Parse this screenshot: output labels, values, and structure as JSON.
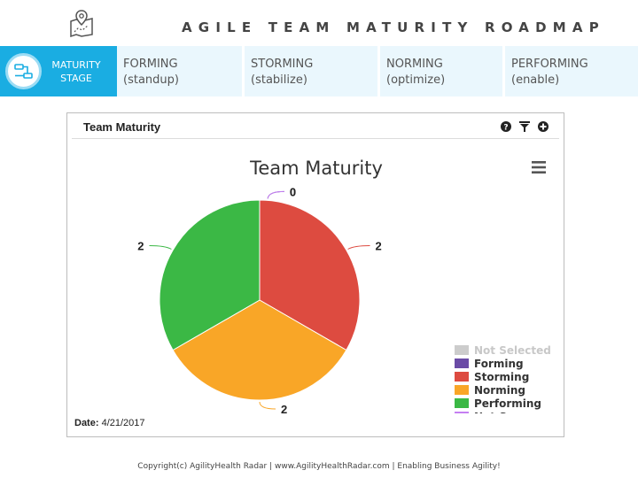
{
  "header": {
    "title": "AGILE TEAM MATURITY ROADMAP",
    "icon": "map-pin-icon"
  },
  "stage_bar": {
    "head": {
      "line1": "MATURITY",
      "line2": "STAGE",
      "icon": "flow-chart-icon",
      "color": "#1aade2"
    },
    "stages": [
      {
        "name": "FORMING",
        "sub": "(standup)"
      },
      {
        "name": "STORMING",
        "sub": "(stabilize)"
      },
      {
        "name": "NORMING",
        "sub": "(optimize)"
      },
      {
        "name": "PERFORMING",
        "sub": "(enable)"
      }
    ]
  },
  "panel": {
    "title": "Team Maturity",
    "tools": [
      "help-icon",
      "filter-icon",
      "add-icon"
    ],
    "date_label": "Date:",
    "date_value": "4/21/2017"
  },
  "chart_data": {
    "type": "pie",
    "title": "Team Maturity",
    "menu_icon": "hamburger-menu-icon",
    "slices": [
      {
        "label": "Not Selected",
        "value": 0,
        "color": "#cccccc"
      },
      {
        "label": "Forming",
        "value": 0,
        "color": "#6a4ba6"
      },
      {
        "label": "Storming",
        "value": 2,
        "color": "#dd4b40"
      },
      {
        "label": "Norming",
        "value": 2,
        "color": "#f9a627"
      },
      {
        "label": "Performing",
        "value": 2,
        "color": "#3bb845"
      },
      {
        "label": "Not Sure",
        "value": 0,
        "color": "#c57ff2"
      }
    ],
    "legend_position": "bottom-right"
  },
  "footer": {
    "text": "Copyright(c) AgilityHealth Radar | www.AgilityHealthRadar.com | Enabling Business Agility!"
  }
}
